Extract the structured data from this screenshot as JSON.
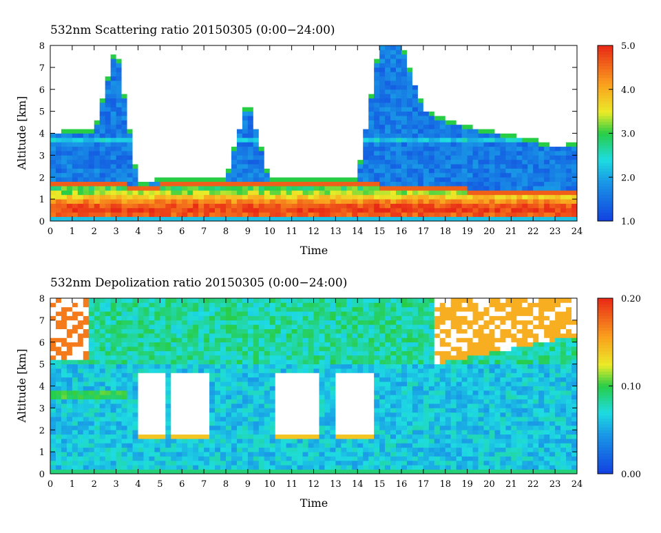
{
  "chart_data": [
    {
      "type": "heatmap",
      "title": "532nm Scattering ratio  20150305 (0:00−24:00)",
      "xlabel": "Time",
      "ylabel": "Altitude [km]",
      "xlim": [
        0,
        24
      ],
      "ylim": [
        0,
        8
      ],
      "x_ticks": [
        "0",
        "1",
        "2",
        "3",
        "4",
        "5",
        "6",
        "7",
        "8",
        "9",
        "10",
        "11",
        "12",
        "13",
        "14",
        "15",
        "16",
        "17",
        "18",
        "19",
        "20",
        "21",
        "22",
        "23",
        "24"
      ],
      "y_ticks": [
        "0",
        "1",
        "2",
        "3",
        "4",
        "5",
        "6",
        "7",
        "8"
      ],
      "colorbar": {
        "range": [
          1.0,
          5.0
        ],
        "ticks": [
          "1.0",
          "2.0",
          "3.0",
          "4.0",
          "5.0"
        ],
        "colormap": "rainbow"
      },
      "features": {
        "boundary_layer_top_km": [
          1.7,
          1.75,
          1.7,
          1.8,
          1.6,
          1.7,
          1.75,
          1.7,
          1.75,
          1.8,
          1.85,
          1.9,
          1.85,
          1.8,
          1.75,
          1.7,
          1.65,
          1.6,
          1.55,
          1.5,
          1.5,
          1.5,
          1.5,
          1.5,
          1.5
        ],
        "cloud_base_km": [
          3.9,
          4.0,
          4.0,
          8.0,
          1.6,
          1.8,
          1.8,
          1.8,
          1.8,
          5.5,
          1.8,
          1.9,
          1.9,
          1.8,
          1.8,
          8.0,
          8.0,
          5.0,
          4.5,
          4.2,
          4.0,
          3.8,
          3.6,
          3.3,
          3.4
        ]
      }
    },
    {
      "type": "heatmap",
      "title": "532nm Depolization ratio  20150305 (0:00−24:00)",
      "xlabel": "Time",
      "ylabel": "Altitude [km]",
      "xlim": [
        0,
        24
      ],
      "ylim": [
        0,
        8
      ],
      "x_ticks": [
        "0",
        "1",
        "2",
        "3",
        "4",
        "5",
        "6",
        "7",
        "8",
        "9",
        "10",
        "11",
        "12",
        "13",
        "14",
        "15",
        "16",
        "17",
        "18",
        "19",
        "20",
        "21",
        "22",
        "23",
        "24"
      ],
      "y_ticks": [
        "0",
        "1",
        "2",
        "3",
        "4",
        "5",
        "6",
        "7",
        "8"
      ],
      "colorbar": {
        "range": [
          0.0,
          0.2
        ],
        "ticks": [
          "0.00",
          "0.10",
          "0.20"
        ],
        "colormap": "rainbow"
      }
    }
  ]
}
